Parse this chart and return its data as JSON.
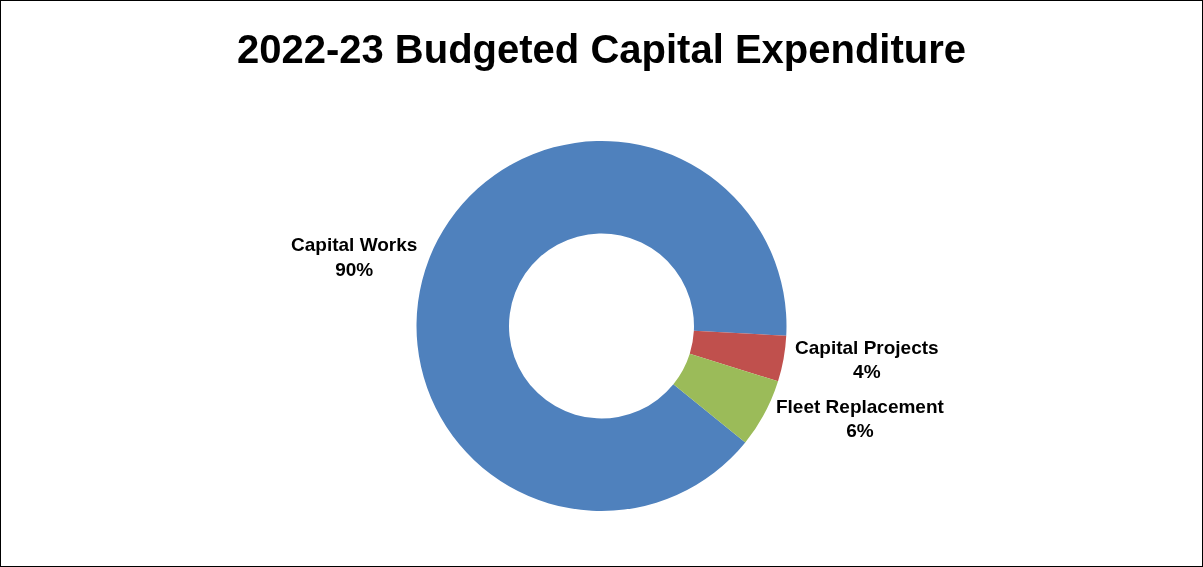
{
  "chart_data": {
    "type": "donut",
    "title": "2022-23 Budgeted Capital Expenditure",
    "categories": [
      "Capital Works",
      "Capital Projects",
      "Fleet Replacement"
    ],
    "values": [
      90,
      4,
      6
    ],
    "colors": [
      "#4f81bd",
      "#c0504d",
      "#9bbb59"
    ],
    "value_labels": [
      "90%",
      "4%",
      "6%"
    ],
    "legend": false
  }
}
